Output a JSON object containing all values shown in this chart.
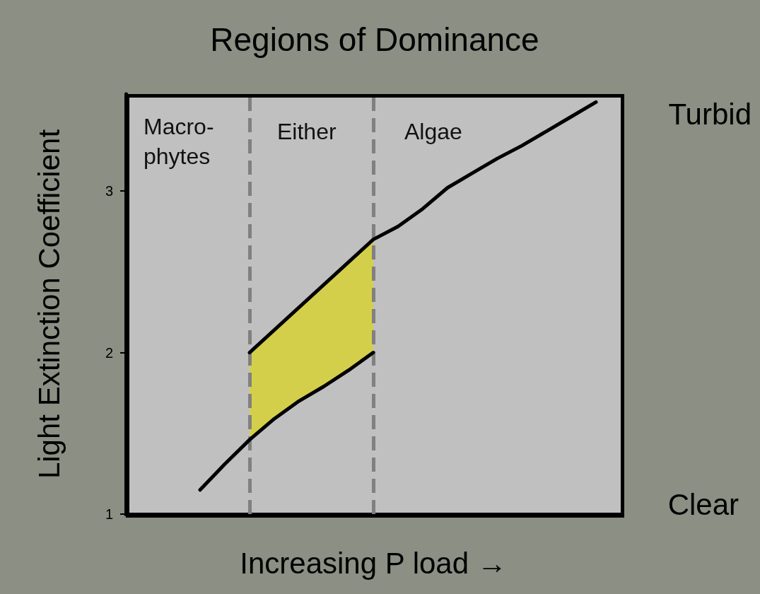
{
  "chart_data": {
    "type": "line",
    "title": "Regions of Dominance",
    "xlabel": "Increasing P load →",
    "ylabel": "Light Extinction Coefficient",
    "categories": [
      null,
      null,
      null,
      null,
      null,
      null,
      null,
      null,
      null,
      null,
      null,
      null,
      null,
      null,
      null,
      null,
      null,
      null,
      null,
      null,
      null
    ],
    "ylim": [
      1,
      3.6
    ],
    "yticks": [
      1,
      2,
      3
    ],
    "tick_labels": "y",
    "grid": false,
    "marker": "none",
    "line_style": "solid",
    "series": [
      {
        "type": "area",
        "color": "#d4cf4a",
        "values": [
          null,
          null,
          null,
          null,
          null,
          2.0,
          2.14,
          2.28,
          2.42,
          2.56,
          2.7,
          null,
          null,
          null,
          null,
          null,
          null,
          null,
          null,
          null,
          null
        ]
      },
      {
        "color": "#000000",
        "values": [
          null,
          null,
          null,
          1.15,
          1.31,
          1.46,
          1.59,
          1.7,
          1.79,
          1.89,
          2.0,
          null,
          null,
          null,
          null,
          null,
          null,
          null,
          null,
          null,
          null
        ]
      },
      {
        "color": "#000000",
        "values": [
          null,
          null,
          null,
          null,
          null,
          2.0,
          2.14,
          2.28,
          2.42,
          2.56,
          2.7,
          2.78,
          2.89,
          3.02,
          3.11,
          3.2,
          3.28,
          3.37,
          3.46,
          3.55,
          null
        ]
      }
    ],
    "annotations": [
      "Macro-\nphytes",
      "Either",
      "Algae",
      "Turbid",
      "Clear"
    ]
  }
}
